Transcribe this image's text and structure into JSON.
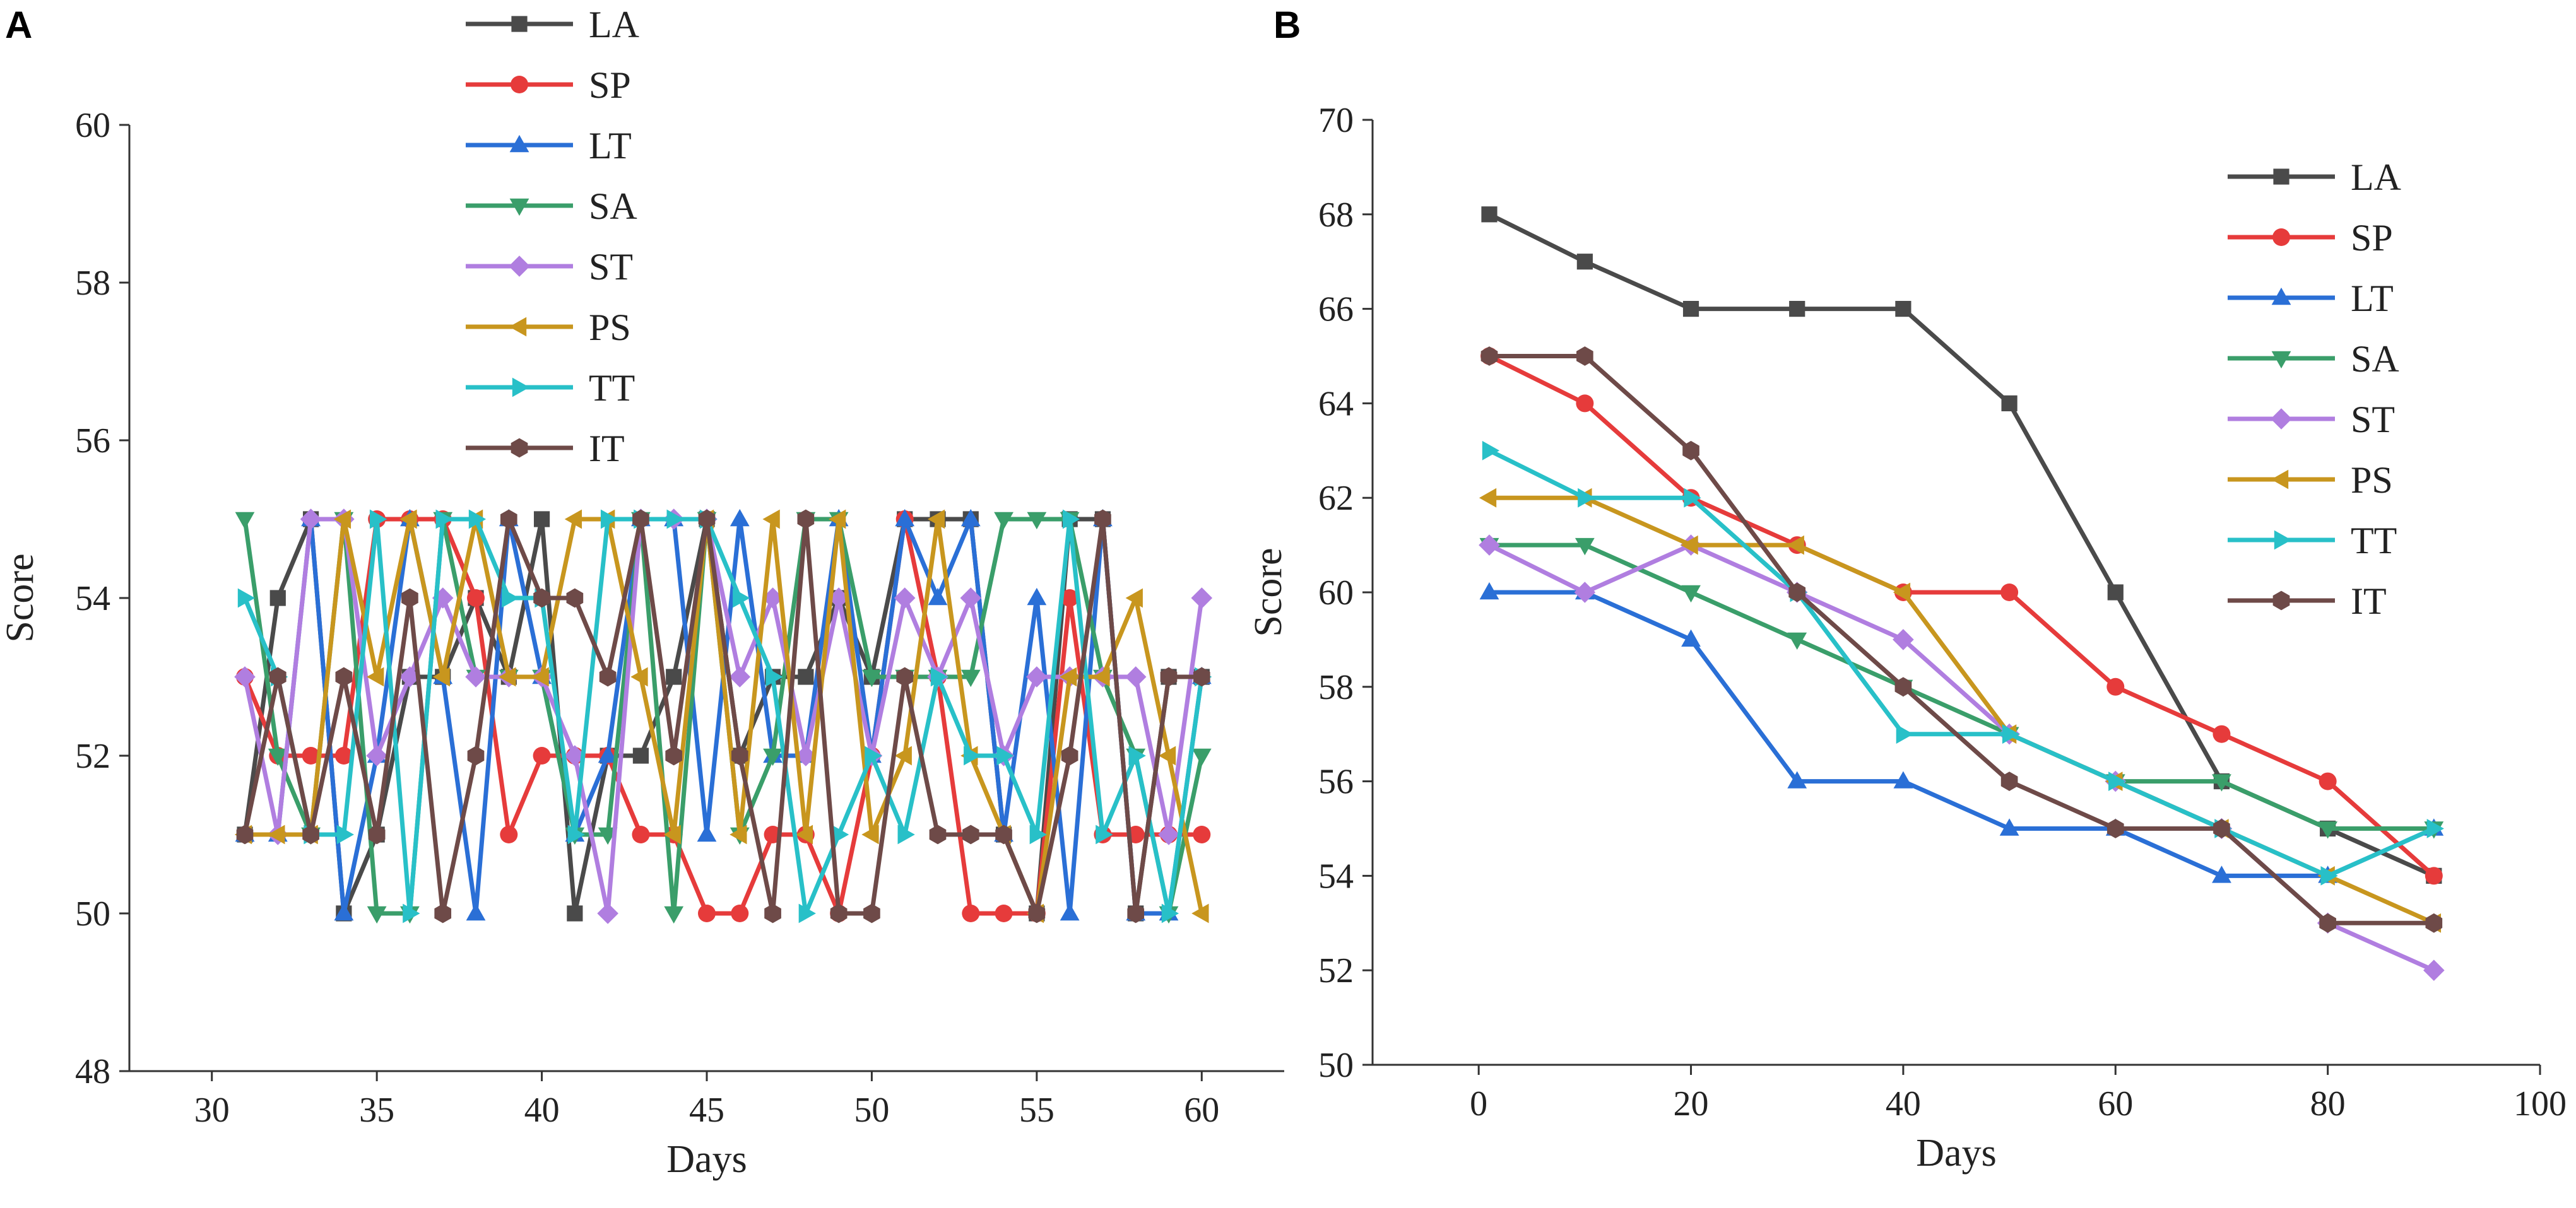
{
  "chart_data": [
    {
      "panel": "A",
      "type": "line",
      "xlabel": "Days",
      "ylabel": "Score",
      "xlim": [
        27.5,
        62.5
      ],
      "ylim": [
        48,
        60
      ],
      "xticks": [
        30,
        35,
        40,
        45,
        50,
        55,
        60
      ],
      "yticks": [
        48,
        50,
        52,
        54,
        56,
        58,
        60
      ],
      "legend_position": "top-center",
      "x": [
        31,
        32,
        33,
        34,
        35,
        36,
        37,
        38,
        39,
        40,
        41,
        42,
        43,
        44,
        45,
        46,
        47,
        48,
        49,
        50,
        51,
        52,
        53,
        54,
        55,
        56,
        57,
        58,
        59,
        60
      ],
      "series": [
        {
          "name": "LA",
          "color": "#4a4a4a",
          "marker": "square",
          "values": [
            51,
            54,
            55,
            50,
            51,
            53,
            53,
            54,
            53,
            55,
            50,
            52,
            52,
            53,
            55,
            52,
            53,
            53,
            54,
            53,
            55,
            55,
            55,
            51,
            50,
            55,
            55,
            50,
            53,
            53
          ]
        },
        {
          "name": "SP",
          "color": "#e63b3b",
          "marker": "circle",
          "values": [
            53,
            52,
            52,
            52,
            55,
            55,
            55,
            54,
            51,
            52,
            52,
            52,
            51,
            51,
            50,
            50,
            51,
            51,
            50,
            52,
            55,
            53,
            50,
            50,
            50,
            54,
            51,
            51,
            51,
            51
          ]
        },
        {
          "name": "LT",
          "color": "#2a6fd6",
          "marker": "triangle-up",
          "values": [
            51,
            51,
            55,
            50,
            52,
            55,
            53,
            50,
            55,
            53,
            51,
            52,
            55,
            55,
            51,
            55,
            52,
            52,
            55,
            52,
            55,
            54,
            55,
            51,
            54,
            50,
            55,
            50,
            50,
            53
          ]
        },
        {
          "name": "SA",
          "color": "#3a9e6a",
          "marker": "triangle-down",
          "values": [
            55,
            52,
            51,
            55,
            50,
            50,
            55,
            53,
            53,
            53,
            51,
            51,
            55,
            50,
            55,
            51,
            52,
            55,
            55,
            53,
            53,
            53,
            53,
            55,
            55,
            55,
            53,
            52,
            50,
            52
          ]
        },
        {
          "name": "ST",
          "color": "#b07ee0",
          "marker": "diamond",
          "values": [
            53,
            51,
            55,
            55,
            52,
            53,
            54,
            53,
            53,
            53,
            52,
            50,
            55,
            55,
            55,
            53,
            54,
            52,
            54,
            52,
            54,
            53,
            54,
            52,
            53,
            53,
            53,
            53,
            51,
            54
          ]
        },
        {
          "name": "PS",
          "color": "#c8961e",
          "marker": "triangle-left",
          "values": [
            51,
            51,
            51,
            55,
            53,
            55,
            53,
            55,
            53,
            53,
            55,
            55,
            53,
            51,
            55,
            51,
            55,
            51,
            55,
            51,
            52,
            55,
            52,
            51,
            50,
            53,
            53,
            54,
            52,
            50
          ]
        },
        {
          "name": "TT",
          "color": "#28c0c8",
          "marker": "triangle-right",
          "values": [
            54,
            53,
            51,
            51,
            55,
            50,
            55,
            55,
            54,
            54,
            51,
            55,
            55,
            55,
            55,
            54,
            53,
            50,
            51,
            52,
            51,
            53,
            52,
            52,
            51,
            55,
            51,
            52,
            50,
            53
          ]
        },
        {
          "name": "IT",
          "color": "#6e4a48",
          "marker": "hexagon",
          "values": [
            51,
            53,
            51,
            53,
            51,
            54,
            50,
            52,
            55,
            54,
            54,
            53,
            55,
            52,
            55,
            52,
            50,
            55,
            50,
            50,
            53,
            51,
            51,
            51,
            50,
            52,
            55,
            50,
            53,
            53
          ]
        }
      ]
    },
    {
      "panel": "B",
      "type": "line",
      "xlabel": "Days",
      "ylabel": "Score",
      "xlim": [
        -10,
        100
      ],
      "ylim": [
        50,
        70
      ],
      "xticks": [
        0,
        20,
        40,
        60,
        80,
        100
      ],
      "yticks": [
        50,
        52,
        54,
        56,
        58,
        60,
        62,
        64,
        66,
        68,
        70
      ],
      "legend_position": "top-right",
      "x": [
        1,
        10,
        20,
        30,
        40,
        50,
        60,
        70,
        80,
        90
      ],
      "series": [
        {
          "name": "LA",
          "color": "#4a4a4a",
          "marker": "square",
          "values": [
            68,
            67,
            66,
            66,
            66,
            64,
            60,
            56,
            55,
            54
          ]
        },
        {
          "name": "SP",
          "color": "#e63b3b",
          "marker": "circle",
          "values": [
            65,
            64,
            62,
            61,
            60,
            60,
            58,
            57,
            56,
            54
          ]
        },
        {
          "name": "LT",
          "color": "#2a6fd6",
          "marker": "triangle-up",
          "values": [
            60,
            60,
            59,
            56,
            56,
            55,
            55,
            54,
            54,
            55
          ]
        },
        {
          "name": "SA",
          "color": "#3a9e6a",
          "marker": "triangle-down",
          "values": [
            61,
            61,
            60,
            59,
            58,
            57,
            56,
            56,
            55,
            55
          ]
        },
        {
          "name": "ST",
          "color": "#b07ee0",
          "marker": "diamond",
          "values": [
            61,
            60,
            61,
            60,
            59,
            57,
            56,
            55,
            53,
            52
          ]
        },
        {
          "name": "PS",
          "color": "#c8961e",
          "marker": "triangle-left",
          "values": [
            62,
            62,
            61,
            61,
            60,
            57,
            56,
            55,
            54,
            53
          ]
        },
        {
          "name": "TT",
          "color": "#28c0c8",
          "marker": "triangle-right",
          "values": [
            63,
            62,
            62,
            60,
            57,
            57,
            56,
            55,
            54,
            55
          ]
        },
        {
          "name": "IT",
          "color": "#6e4a48",
          "marker": "hexagon",
          "values": [
            65,
            65,
            63,
            60,
            58,
            56,
            55,
            55,
            53,
            53
          ]
        }
      ]
    }
  ]
}
